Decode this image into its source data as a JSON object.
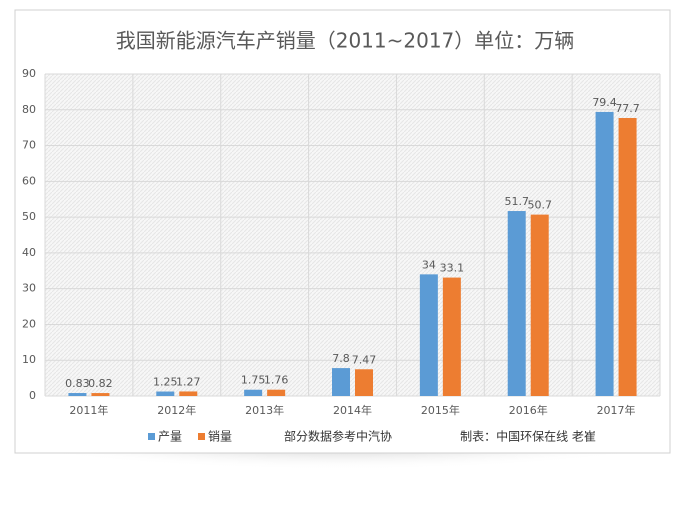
{
  "chart_data": {
    "type": "bar",
    "title": "我国新能源汽车产销量（2011~2017）单位：万辆",
    "categories": [
      "2011年",
      "2012年",
      "2013年",
      "2014年",
      "2015年",
      "2016年",
      "2017年"
    ],
    "series": [
      {
        "name": "产量",
        "color": "#5b9bd5",
        "values": [
          0.83,
          1.25,
          1.75,
          7.8,
          34,
          51.7,
          79.4
        ]
      },
      {
        "name": "销量",
        "color": "#ed7d31",
        "values": [
          0.82,
          1.27,
          1.76,
          7.47,
          33.1,
          50.7,
          77.7
        ]
      }
    ],
    "ylim": [
      0,
      90
    ],
    "yticks": [
      0,
      10,
      20,
      30,
      40,
      50,
      60,
      70,
      80,
      90
    ],
    "grid": true,
    "annotations": [
      "部分数据参考中汽协",
      "制表：中国环保在线 老崔"
    ]
  }
}
